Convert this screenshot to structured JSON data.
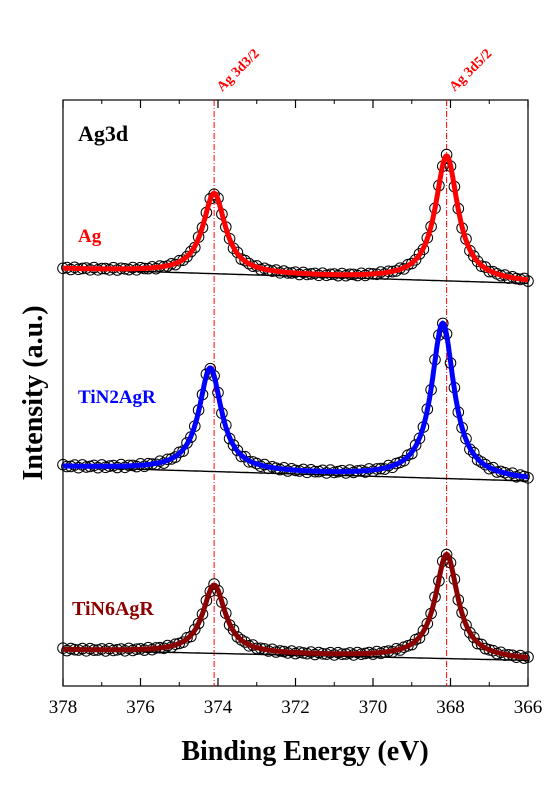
{
  "chart_data": {
    "type": "line",
    "title": "",
    "xlabel": "Binding Energy (eV)",
    "ylabel": "Intensity (a.u.)",
    "panel_label": "Ag3d",
    "xlim": [
      378,
      366
    ],
    "x_ticks": [
      378,
      376,
      374,
      372,
      370,
      368,
      366
    ],
    "x_reversed": true,
    "y_ticks_shown": false,
    "grid": false,
    "reference_lines": [
      {
        "label": "Ag 3d3/2",
        "x": 374.1
      },
      {
        "label": "Ag 3d5/2",
        "x": 368.1
      }
    ],
    "marker_style": "open-circle",
    "series": [
      {
        "name": "Ag",
        "color": "#ff0000",
        "peaks": [
          {
            "x": 374.1,
            "height": 1.0
          },
          {
            "x": 368.1,
            "height": 1.56
          }
        ],
        "baseline_left": 0.0,
        "baseline_right": -0.18
      },
      {
        "name": "TiN2AgR",
        "color": "#0000ff",
        "peaks": [
          {
            "x": 374.2,
            "height": 1.03
          },
          {
            "x": 368.2,
            "height": 1.55
          }
        ],
        "baseline_left": 0.0,
        "baseline_right": -0.14
      },
      {
        "name": "TiN6AgR",
        "color": "#8b0000",
        "peaks": [
          {
            "x": 374.1,
            "height": 0.85
          },
          {
            "x": 368.1,
            "height": 1.3
          }
        ],
        "baseline_left": 0.0,
        "baseline_right": -0.13
      }
    ]
  },
  "colors": {
    "reference_line": "#ff0000",
    "reference_label": "#ff0000",
    "fit_baseline": "#000000"
  }
}
